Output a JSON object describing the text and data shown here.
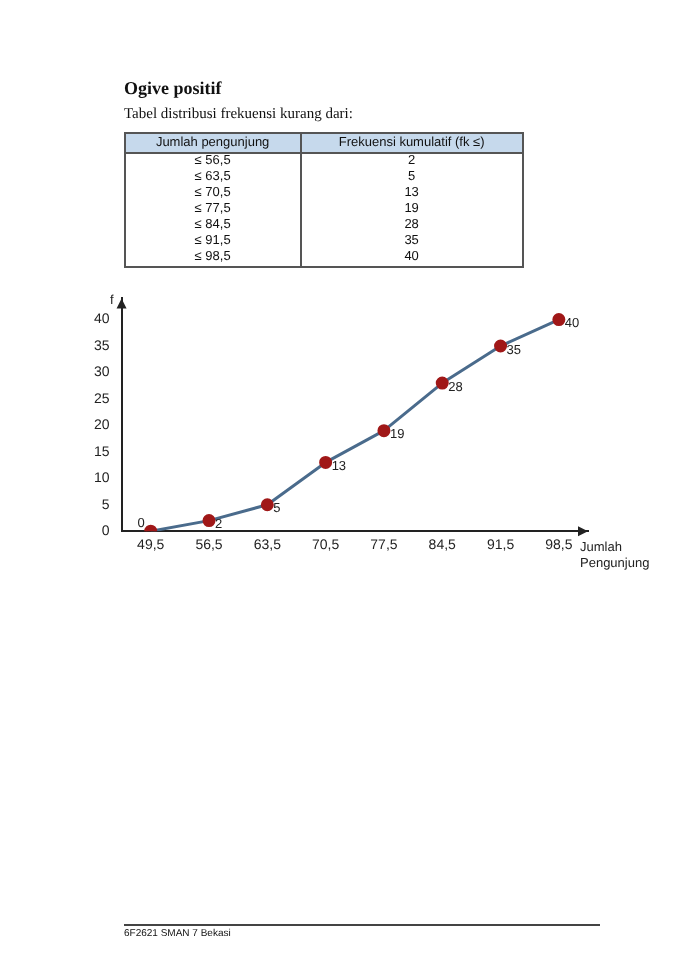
{
  "chart_data": {
    "type": "line",
    "title": "Ogive positif",
    "subtitle": "Tabel distribusi frekuensi kurang dari:",
    "xlabel": "Jumlah Pengunjung",
    "ylabel": "f",
    "categories": [
      "49,5",
      "56,5",
      "63,5",
      "70,5",
      "77,5",
      "84,5",
      "91,5",
      "98,5"
    ],
    "series": [
      {
        "color": "#4a6b8c",
        "marker": "circle",
        "values": [
          0,
          2,
          5,
          13,
          19,
          28,
          35,
          40
        ],
        "colors": [
          "#a01818",
          "#a01818",
          "#a01818",
          "#a01818",
          "#a01818",
          "#a01818",
          "#a01818",
          "#a01818"
        ]
      }
    ],
    "ylim": [
      0,
      44
    ],
    "yticks": [
      0,
      5,
      10,
      15,
      20,
      25,
      30,
      35,
      40
    ],
    "grid": false,
    "legend": false,
    "line_style": "solid",
    "data_labels": true,
    "annotations": [
      "Jumlah pengunjung",
      "Frekuensi kumulatif (fk ≤)",
      "≤ 56,5",
      "≤ 63,5",
      "≤ 70,5",
      "≤ 77,5",
      "≤ 84,5",
      "≤ 91,5",
      "≤ 98,5",
      "2",
      "5",
      "13",
      "19",
      "28",
      "35",
      "40",
      "6F2621 SMAN 7 Bekasi"
    ]
  }
}
